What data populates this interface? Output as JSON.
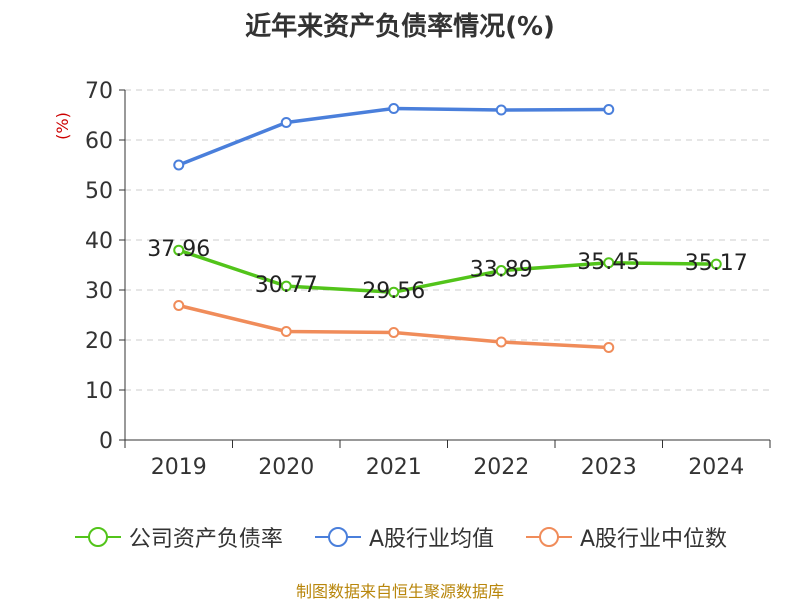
{
  "chart_data": {
    "type": "line",
    "title": "近年来资产负债率情况(%)",
    "ylabel": "(%)",
    "xlabel": "",
    "categories": [
      "2019",
      "2020",
      "2021",
      "2022",
      "2023",
      "2024"
    ],
    "ylim": [
      0,
      70
    ],
    "yticks": [
      0,
      10,
      20,
      30,
      40,
      50,
      60,
      70
    ],
    "grid": true,
    "legend_position": "bottom",
    "series": [
      {
        "name": "公司资产负债率",
        "color": "#52c41a",
        "values": [
          37.96,
          30.77,
          29.56,
          33.89,
          35.45,
          35.17
        ],
        "data_labels": [
          "37.96",
          "30.77",
          "29.56",
          "33.89",
          "35.45",
          "35.17"
        ]
      },
      {
        "name": "A股行业均值",
        "color": "#4a7fdb",
        "values": [
          55.0,
          63.5,
          66.3,
          66.0,
          66.1,
          null
        ]
      },
      {
        "name": "A股行业中位数",
        "color": "#f08c5a",
        "values": [
          26.9,
          21.7,
          21.5,
          19.6,
          18.5,
          null
        ]
      }
    ]
  },
  "source": "制图数据来自恒生聚源数据库"
}
